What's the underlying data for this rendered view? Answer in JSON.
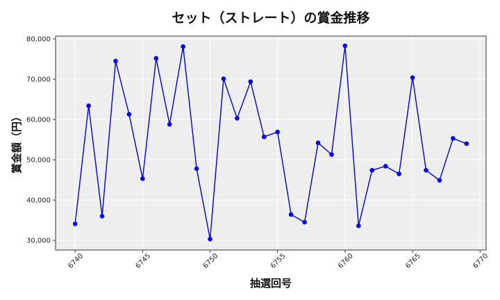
{
  "chart_data": {
    "type": "line",
    "title": "セット（ストレート）の賞金推移",
    "xlabel": "抽選回号",
    "ylabel": "賞金額（円）",
    "x": [
      6740,
      6741,
      6742,
      6743,
      6744,
      6745,
      6746,
      6747,
      6748,
      6749,
      6750,
      6751,
      6752,
      6753,
      6754,
      6755,
      6756,
      6757,
      6758,
      6759,
      6760,
      6761,
      6762,
      6763,
      6764,
      6765,
      6766,
      6767,
      6768,
      6769
    ],
    "series": [
      {
        "values": [
          34100,
          63400,
          36000,
          74500,
          61300,
          45300,
          75200,
          58800,
          78100,
          47800,
          30300,
          70100,
          60300,
          69400,
          55700,
          56900,
          36400,
          34500,
          54200,
          51300,
          78300,
          33600,
          47400,
          48400,
          46500,
          70400,
          47400,
          44900,
          55300,
          54000
        ]
      }
    ],
    "xticks": [
      6740,
      6745,
      6750,
      6755,
      6760,
      6765,
      6770
    ],
    "xtick_labels": [
      "6740",
      "6745",
      "6750",
      "6755",
      "6760",
      "6765",
      "6770"
    ],
    "yticks": [
      30000,
      40000,
      50000,
      60000,
      70000,
      80000
    ],
    "ytick_labels": [
      "30,000",
      "40,000",
      "50,000",
      "60,000",
      "70,000",
      "80,000"
    ],
    "xlim": [
      6738.55,
      6770.45
    ],
    "ylim": [
      27600,
      80700
    ],
    "grid": true,
    "colors": {
      "line": "#0000cc",
      "marker": "#0000ee",
      "plot_bg": "#eeeeee",
      "grid": "#ffffff"
    }
  }
}
